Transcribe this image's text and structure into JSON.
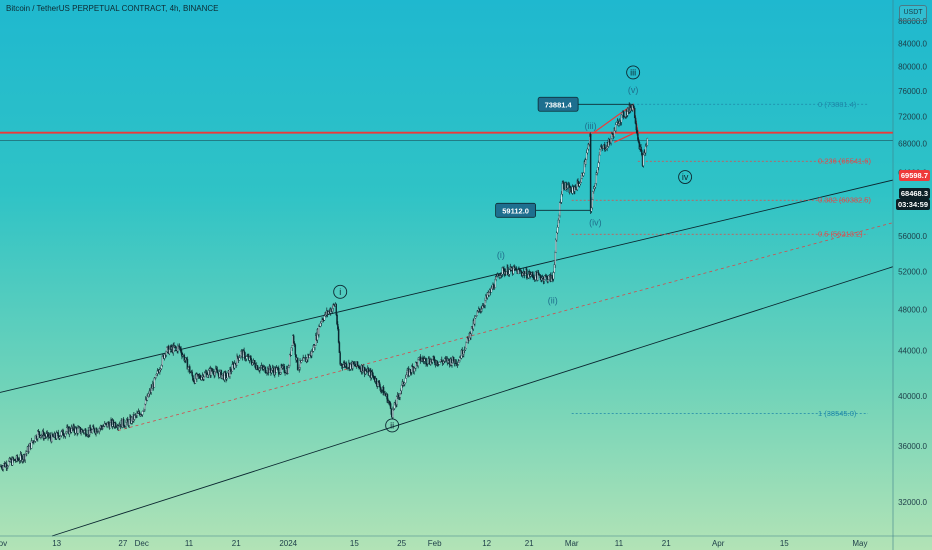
{
  "header": {
    "title": "Bitcoin / TetherUS PERPETUAL CONTRACT, 4h, BINANCE",
    "currency": "USDT"
  },
  "price_tags": {
    "red_line": "69598.7",
    "last": "68468.3",
    "countdown": "03:34:59"
  },
  "colors": {
    "red_line": "#ee3a3a",
    "candle": "#0b2730",
    "channel": "#0b2730",
    "fib_red": "#e04a4a",
    "fib_blue": "#1e88a8",
    "callout_bg": "#1e6f8f"
  },
  "chart_data": {
    "type": "candlestick",
    "title": "Bitcoin / TetherUS PERPETUAL CONTRACT, 4h, BINANCE",
    "y_scale": "log",
    "ylim": [
      29800,
      92000
    ],
    "y_ticks": [
      32000,
      36000,
      40000,
      44000,
      48000,
      52000,
      56000,
      60000,
      64000,
      68000,
      72000,
      76000,
      80000,
      84000,
      88000
    ],
    "y_tick_labels": [
      "32000.0",
      "36000.0",
      "40000.0",
      "44000.0",
      "48000.0",
      "52000.0",
      "56000.0",
      "60000.0",
      "64000.0",
      "68000.0",
      "72000.0",
      "76000.0",
      "80000.0",
      "84000.0",
      "88000.0"
    ],
    "x_range": [
      "2023-11-01",
      "2024-05-08"
    ],
    "x_ticks": [
      {
        "date": "2023-11-01",
        "label": "Nov"
      },
      {
        "date": "2023-11-13",
        "label": "13"
      },
      {
        "date": "2023-11-27",
        "label": "27"
      },
      {
        "date": "2023-12-01",
        "label": "Dec"
      },
      {
        "date": "2023-12-11",
        "label": "11"
      },
      {
        "date": "2023-12-21",
        "label": "21"
      },
      {
        "date": "2024-01-01",
        "label": "2024"
      },
      {
        "date": "2024-01-15",
        "label": "15"
      },
      {
        "date": "2024-01-25",
        "label": "25"
      },
      {
        "date": "2024-02-01",
        "label": "Feb"
      },
      {
        "date": "2024-02-12",
        "label": "12"
      },
      {
        "date": "2024-02-21",
        "label": "21"
      },
      {
        "date": "2024-03-01",
        "label": "Mar"
      },
      {
        "date": "2024-03-11",
        "label": "11"
      },
      {
        "date": "2024-03-21",
        "label": "21"
      },
      {
        "date": "2024-04-01",
        "label": "Apr"
      },
      {
        "date": "2024-04-15",
        "label": "15"
      },
      {
        "date": "2024-05-01",
        "label": "May"
      }
    ],
    "price_path": [
      {
        "date": "2023-11-01",
        "close": 34500
      },
      {
        "date": "2023-11-06",
        "close": 35200
      },
      {
        "date": "2023-11-09",
        "close": 37000
      },
      {
        "date": "2023-11-12",
        "close": 36600
      },
      {
        "date": "2023-11-16",
        "close": 37300
      },
      {
        "date": "2023-11-20",
        "close": 37100
      },
      {
        "date": "2023-11-24",
        "close": 37700
      },
      {
        "date": "2023-11-28",
        "close": 37800
      },
      {
        "date": "2023-12-01",
        "close": 38700
      },
      {
        "date": "2023-12-04",
        "close": 41500
      },
      {
        "date": "2023-12-06",
        "close": 44000
      },
      {
        "date": "2023-12-09",
        "close": 44300
      },
      {
        "date": "2023-12-12",
        "close": 41400
      },
      {
        "date": "2023-12-16",
        "close": 42200
      },
      {
        "date": "2023-12-19",
        "close": 41600
      },
      {
        "date": "2023-12-22",
        "close": 43800
      },
      {
        "date": "2023-12-26",
        "close": 42400
      },
      {
        "date": "2023-12-29",
        "close": 42200
      },
      {
        "date": "2024-01-01",
        "close": 42300
      },
      {
        "date": "2024-01-02",
        "close": 45400
      },
      {
        "date": "2024-01-03",
        "close": 42500
      },
      {
        "date": "2024-01-06",
        "close": 43800
      },
      {
        "date": "2024-01-08",
        "close": 47000
      },
      {
        "date": "2024-01-11",
        "close": 48500
      },
      {
        "date": "2024-01-12",
        "close": 42800
      },
      {
        "date": "2024-01-16",
        "close": 42600
      },
      {
        "date": "2024-01-19",
        "close": 41700
      },
      {
        "date": "2024-01-22",
        "close": 39800
      },
      {
        "date": "2024-01-23",
        "close": 38555
      },
      {
        "date": "2024-01-26",
        "close": 41800
      },
      {
        "date": "2024-01-29",
        "close": 43200
      },
      {
        "date": "2024-02-02",
        "close": 43000
      },
      {
        "date": "2024-02-06",
        "close": 43100
      },
      {
        "date": "2024-02-08",
        "close": 45000
      },
      {
        "date": "2024-02-10",
        "close": 47500
      },
      {
        "date": "2024-02-13",
        "close": 50000
      },
      {
        "date": "2024-02-15",
        "close": 52000
      },
      {
        "date": "2024-02-18",
        "close": 52100
      },
      {
        "date": "2024-02-22",
        "close": 51500
      },
      {
        "date": "2024-02-26",
        "close": 51200
      },
      {
        "date": "2024-02-27",
        "close": 57000
      },
      {
        "date": "2024-02-28",
        "close": 62500
      },
      {
        "date": "2024-03-01",
        "close": 61500
      },
      {
        "date": "2024-03-03",
        "close": 63000
      },
      {
        "date": "2024-03-05",
        "close": 69000
      },
      {
        "date": "2024-03-05",
        "close": 59112
      },
      {
        "date": "2024-03-07",
        "close": 67000
      },
      {
        "date": "2024-03-09",
        "close": 68200
      },
      {
        "date": "2024-03-11",
        "close": 71500
      },
      {
        "date": "2024-03-13",
        "close": 73000
      },
      {
        "date": "2024-03-14",
        "close": 73881
      },
      {
        "date": "2024-03-15",
        "close": 69000
      },
      {
        "date": "2024-03-16",
        "close": 65500
      },
      {
        "date": "2024-03-17",
        "close": 68468
      }
    ],
    "channel_lines": [
      {
        "name": "upper",
        "from": {
          "date": "2023-11-01",
          "price": 40300
        },
        "to": {
          "date": "2024-05-08",
          "price": 63000
        },
        "style": "solid"
      },
      {
        "name": "middle",
        "from": {
          "date": "2023-11-26",
          "price": 37200
        },
        "to": {
          "date": "2024-05-08",
          "price": 57600
        },
        "style": "dashed"
      },
      {
        "name": "lower",
        "from": {
          "date": "2023-11-12",
          "price": 29800
        },
        "to": {
          "date": "2024-05-08",
          "price": 52500
        },
        "style": "solid"
      }
    ],
    "horizontal_lines": [
      {
        "price": 69598.7,
        "color": "red",
        "style": "solid"
      },
      {
        "price": 68468.3,
        "color": "dark",
        "style": "thin"
      }
    ],
    "fib_levels": [
      {
        "label": "0 (73881.4)",
        "price": 73881.4,
        "color": "blue",
        "from": "2024-03-14"
      },
      {
        "label": "0.236 (65541.6)",
        "price": 65541.6,
        "color": "red",
        "from": "2024-03-15"
      },
      {
        "label": "0.382 (60382.5)",
        "price": 60382.5,
        "color": "red",
        "from": "2024-03-01"
      },
      {
        "label": "0.5 (56213.2)",
        "price": 56213.2,
        "color": "red",
        "from": "2024-03-01"
      },
      {
        "label": "1 (38545.0)",
        "price": 38545.0,
        "color": "blue",
        "from": "2024-03-01"
      }
    ],
    "callouts": [
      {
        "label": "73881.4",
        "date": "2024-03-14",
        "price": 73881.4
      },
      {
        "label": "59112.0",
        "date": "2024-03-05",
        "price": 59112.0
      }
    ],
    "wave_labels": [
      {
        "label": "i",
        "date": "2024-01-12",
        "price": 49800,
        "circled": true
      },
      {
        "label": "ii",
        "date": "2024-01-23",
        "price": 37600,
        "circled": true
      },
      {
        "label": "iii",
        "date": "2024-03-14",
        "price": 79000,
        "circled": true
      },
      {
        "label": "iv",
        "date": "2024-03-25",
        "price": 63400,
        "circled": true
      },
      {
        "label": "(i)",
        "date": "2024-02-15",
        "price": 53800,
        "circled": false
      },
      {
        "label": "(ii)",
        "date": "2024-02-26",
        "price": 48900,
        "circled": false
      },
      {
        "label": "(iii)",
        "date": "2024-03-05",
        "price": 70600,
        "circled": false
      },
      {
        "label": "(iv)",
        "date": "2024-03-06",
        "price": 57600,
        "circled": false
      },
      {
        "label": "(v)",
        "date": "2024-03-14",
        "price": 76100,
        "circled": false
      }
    ]
  }
}
